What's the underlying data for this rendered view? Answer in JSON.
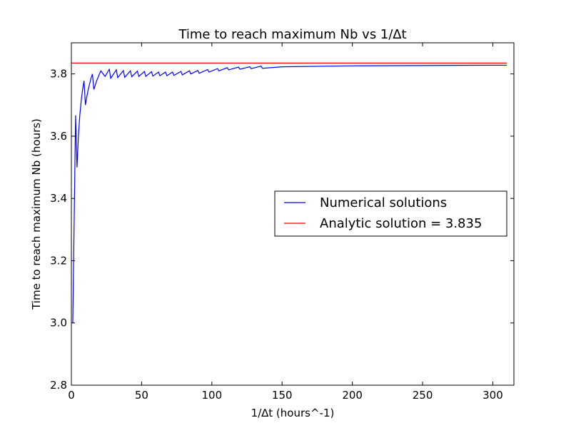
{
  "chart_data": {
    "type": "line",
    "title": "Time to reach maximum Nb vs 1/∆t",
    "xlabel": "1/∆t (hours^-1)",
    "ylabel": "Time to reach maximum Nb (hours)",
    "xlim": [
      0,
      315
    ],
    "ylim": [
      2.8,
      3.9
    ],
    "x_ticks": [
      0,
      50,
      100,
      150,
      200,
      250,
      300
    ],
    "y_ticks": [
      2.8,
      3.0,
      3.2,
      3.4,
      3.6,
      3.8
    ],
    "grid": false,
    "legend_position": "center-right",
    "series": [
      {
        "name": "Numerical solutions",
        "color": "#0000ff",
        "x": [
          1,
          3,
          4,
          5,
          6,
          7,
          8,
          9,
          10,
          11,
          12,
          13,
          14,
          15,
          16,
          18,
          20,
          21,
          24,
          27,
          28,
          32,
          33,
          37,
          38,
          42,
          43,
          47,
          48,
          52,
          53,
          57,
          58,
          62,
          63,
          67,
          68,
          72,
          73,
          78,
          79,
          84,
          85,
          90,
          91,
          97,
          98,
          104,
          105,
          111,
          112,
          119,
          120,
          127,
          128,
          135,
          136,
          150,
          200,
          250,
          300,
          310
        ],
        "y": [
          3.0,
          3.667,
          3.5,
          3.6,
          3.667,
          3.714,
          3.75,
          3.778,
          3.7,
          3.727,
          3.75,
          3.769,
          3.786,
          3.8,
          3.75,
          3.778,
          3.8,
          3.81,
          3.792,
          3.815,
          3.786,
          3.813,
          3.788,
          3.811,
          3.789,
          3.81,
          3.791,
          3.809,
          3.792,
          3.808,
          3.792,
          3.807,
          3.793,
          3.806,
          3.794,
          3.806,
          3.794,
          3.806,
          3.795,
          3.808,
          3.797,
          3.81,
          3.8,
          3.811,
          3.802,
          3.814,
          3.806,
          3.817,
          3.81,
          3.82,
          3.813,
          3.822,
          3.815,
          3.823,
          3.817,
          3.825,
          3.818,
          3.823,
          3.826,
          3.827,
          3.828,
          3.828
        ]
      },
      {
        "name": "Analytic solution = 3.835",
        "color": "#ff0000",
        "x": [
          0,
          310
        ],
        "y": [
          3.835,
          3.835
        ]
      }
    ]
  }
}
